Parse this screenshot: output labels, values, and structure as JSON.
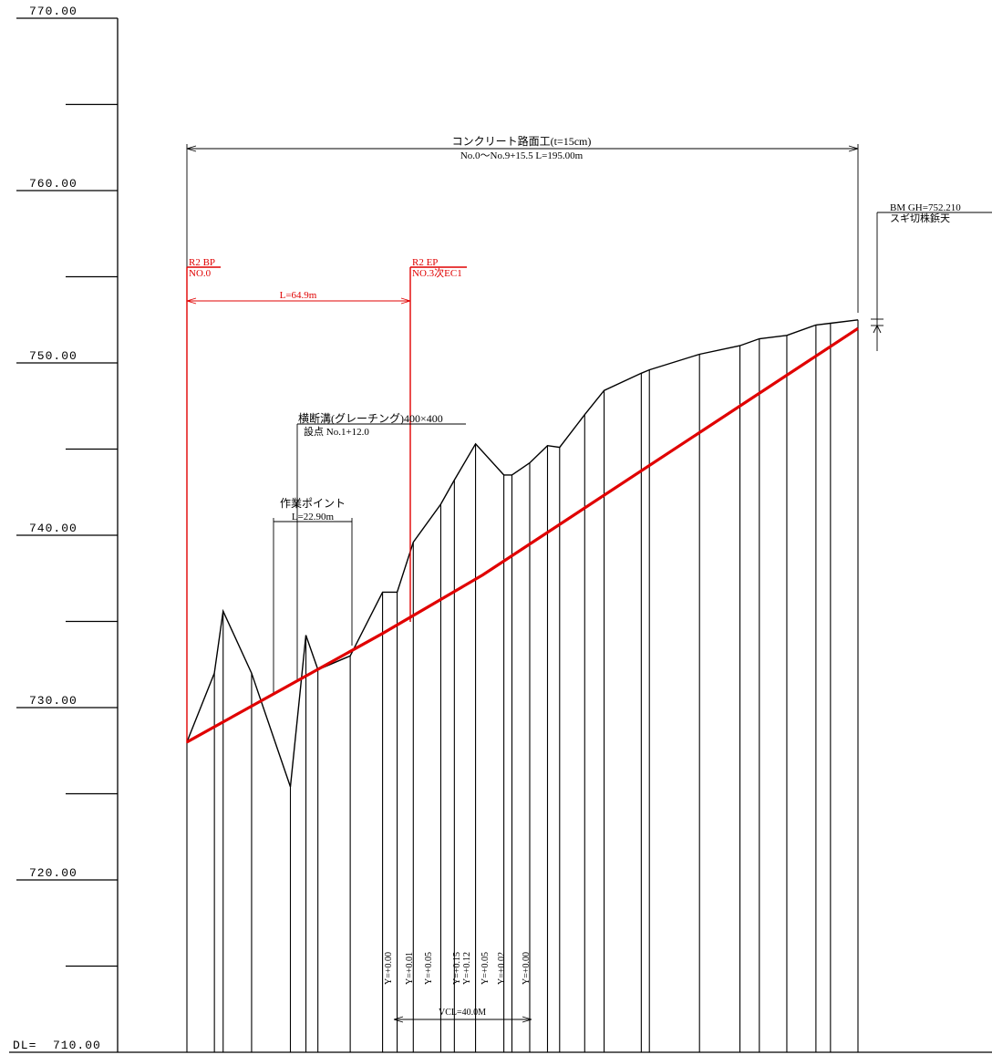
{
  "axis": {
    "datum_label": "DL=",
    "ymin": 710,
    "ymax": 770,
    "major_ticks": [
      "770.00",
      "760.00",
      "750.00",
      "740.00",
      "730.00",
      "720.00",
      "710.00"
    ],
    "minor_ticks": [
      765,
      755,
      745,
      735,
      725,
      715
    ]
  },
  "ground": {
    "stations": [
      0.0,
      17.0,
      22.4,
      40.0,
      64.0,
      73.6,
      81.0,
      101.0,
      121.0,
      130.0,
      140.0,
      157.0,
      165.4,
      178.5,
      196.0,
      201.0,
      212.0,
      223.0,
      230.5,
      246.0,
      258.0,
      281.0,
      286.0,
      317.0,
      342.0,
      354.0,
      371.0,
      389.0,
      398.0,
      415.0
    ]
  },
  "ground_elevations": [
    728.0,
    732.0,
    735.6,
    732.0,
    725.4,
    734.2,
    732.2,
    733.0,
    736.7,
    736.7,
    739.6,
    741.8,
    743.2,
    745.3,
    743.5,
    743.5,
    744.2,
    745.2,
    745.1,
    747.0,
    748.4,
    749.4,
    749.6,
    750.5,
    751.0,
    751.4,
    751.6,
    752.2,
    752.3,
    752.5
  ],
  "grade_line": {
    "points": [
      [
        0.0,
        728.0
      ],
      [
        121.0,
        734.3
      ],
      [
        183.0,
        737.7
      ],
      [
        415.0,
        752.0
      ]
    ]
  },
  "dimensions": {
    "pavement": {
      "title": "コンクリート路面工(t=15cm)",
      "subtitle": "No.0～No.9+15.5  L=195.00m"
    },
    "bp": {
      "label1": "R2 BP",
      "label2": "NO.0"
    },
    "ep": {
      "label1": "R2 EP",
      "label2": "NO.3次EC1"
    },
    "length": "L=64.9m",
    "drain": {
      "title": "横断溝(グレーチング)400×400",
      "subtitle": "設点 No.1+12.0"
    },
    "work_point": {
      "title": "作業ポイント",
      "subtitle": "L=22.90m"
    },
    "bm": {
      "label1": "BM  GH=752.210",
      "label2": "スギ切株鋲天"
    },
    "vcl": "VCL=40.0M"
  },
  "y_labels": [
    "Y=+0.00",
    "Y=+0.01",
    "Y=+0.05",
    "Y=+0.15",
    "Y=+0.12",
    "Y=+0.05",
    "Y=+0.02",
    "Y=+0.00"
  ],
  "colors": {
    "line": "#000000",
    "grade": "#e00000"
  }
}
